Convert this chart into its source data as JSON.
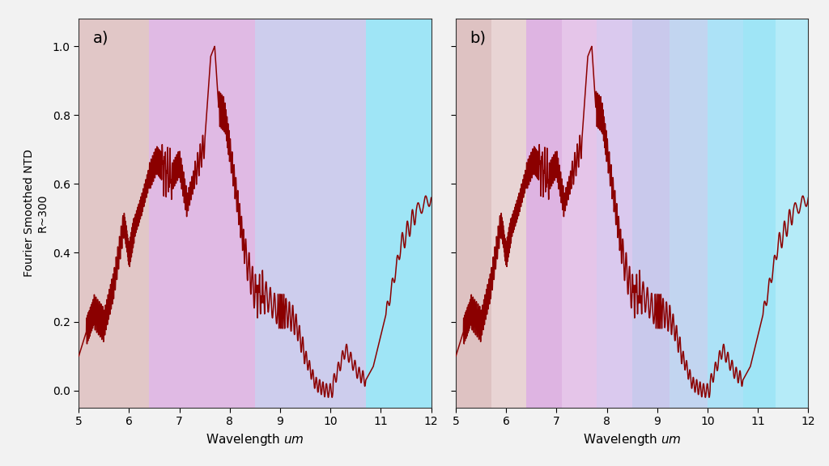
{
  "ylabel_line1": "Fourier Smoothed NTD",
  "ylabel_line2": "R~300",
  "xlabel": "Wavelength um",
  "xlim": [
    5,
    12
  ],
  "ylim": [
    -0.05,
    1.08
  ],
  "xticks": [
    5,
    6,
    7,
    8,
    9,
    10,
    11,
    12
  ],
  "yticks": [
    0.0,
    0.2,
    0.4,
    0.6,
    0.8,
    1.0
  ],
  "panel_a_bands": [
    {
      "xmin": 5.0,
      "xmax": 6.4,
      "color": "#c49090",
      "alpha": 0.5
    },
    {
      "xmin": 6.4,
      "xmax": 8.5,
      "color": "#c070c8",
      "alpha": 0.48
    },
    {
      "xmin": 8.5,
      "xmax": 10.7,
      "color": "#9090d8",
      "alpha": 0.45
    },
    {
      "xmin": 10.7,
      "xmax": 12.0,
      "color": "#50d0f0",
      "alpha": 0.55
    }
  ],
  "panel_b_bands": [
    {
      "xmin": 5.0,
      "xmax": 5.7,
      "color": "#c49090",
      "alpha": 0.55
    },
    {
      "xmin": 5.7,
      "xmax": 6.4,
      "color": "#c49090",
      "alpha": 0.38
    },
    {
      "xmin": 6.4,
      "xmax": 7.1,
      "color": "#c070c8",
      "alpha": 0.52
    },
    {
      "xmin": 7.1,
      "xmax": 7.8,
      "color": "#c070c8",
      "alpha": 0.4
    },
    {
      "xmin": 7.8,
      "xmax": 8.5,
      "color": "#a880d8",
      "alpha": 0.42
    },
    {
      "xmin": 8.5,
      "xmax": 9.25,
      "color": "#9090d8",
      "alpha": 0.48
    },
    {
      "xmin": 9.25,
      "xmax": 10.0,
      "color": "#80a8e0",
      "alpha": 0.48
    },
    {
      "xmin": 10.0,
      "xmax": 10.7,
      "color": "#60c8f0",
      "alpha": 0.52
    },
    {
      "xmin": 10.7,
      "xmax": 11.35,
      "color": "#50d0f0",
      "alpha": 0.55
    },
    {
      "xmin": 11.35,
      "xmax": 12.0,
      "color": "#50d0f0",
      "alpha": 0.42
    }
  ],
  "line_color": "#8b0000",
  "line_width": 1.1,
  "label_a": "a)",
  "label_b": "b)",
  "label_fontsize": 14,
  "ax_facecolor": "#ffffff",
  "fig_facecolor": "#f2f2f2"
}
